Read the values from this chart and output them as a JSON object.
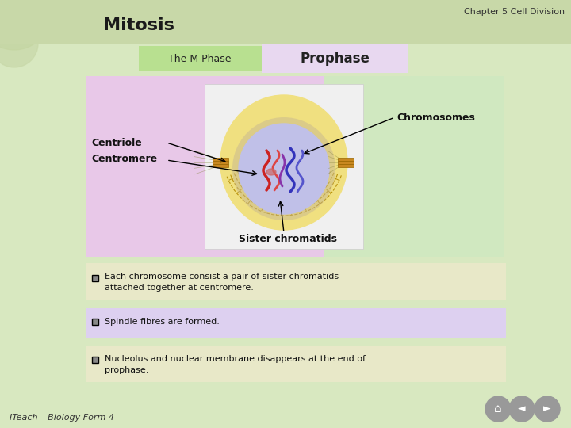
{
  "title_chapter": "Chapter 5 Cell Division",
  "title_main": "Mitosis",
  "tab1_text": "The M Phase",
  "tab2_text": "Prophase",
  "label_centriole": "Centriole",
  "label_centromere": "Centromere",
  "label_chromosomes": "Chromosomes",
  "label_sister": "Sister chromatids",
  "bullet1": "Each chromosome consist a pair of sister chromatids\nattached together at centromere.",
  "bullet2": "Spindle fibres are formed.",
  "bullet3": "Nucleolus and nuclear membrane disappears at the end of\nprophase.",
  "footer": "ITeach – Biology Form 4",
  "bg_color": "#d8e8c0",
  "header_bg": "#c8d8a8",
  "tab1_color": "#b8e090",
  "tab2_color": "#e8d8f0",
  "diagram_bg_left": "#e8c8e8",
  "diagram_bg_right": "#d0e8c0",
  "diagram_box_bg": "#f0f0f0",
  "bullet1_bg": "#e8e8c8",
  "bullet2_bg": "#ddd0f0",
  "bullet3_bg": "#e8e8c8",
  "bullet_square_color": "#888888",
  "outer_cell_color": "#f0e080",
  "nuc_env_color": "#c8b890",
  "nuc_int_color": "#c0c0e8",
  "centriole_color": "#c88820",
  "btn_color": "#999999"
}
